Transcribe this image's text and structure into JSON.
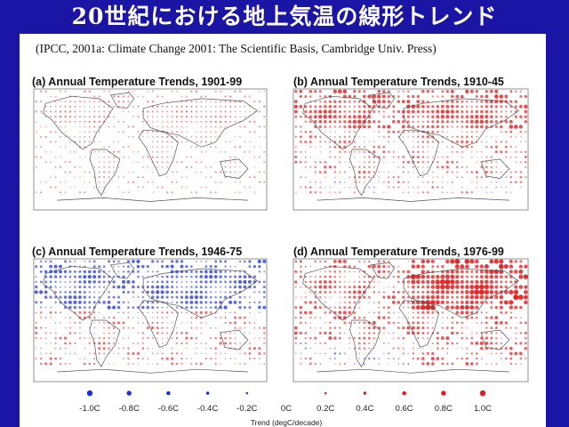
{
  "slide": {
    "title": "20世紀における地上気温の線形トレンド",
    "citation": "(IPCC, 2001a: Climate Change 2001: The Scientific Basis, Cambridge Univ. Press)"
  },
  "maps": [
    {
      "label": "(a) Annual Temperature Trends, 1901-99",
      "pattern": "weak-warming"
    },
    {
      "label": "(b) Annual Temperature Trends, 1910-45",
      "pattern": "moderate-warming-north"
    },
    {
      "label": "(c) Annual Temperature Trends, 1946-75",
      "pattern": "cooling-north-warming-south"
    },
    {
      "label": "(d) Annual Temperature Trends, 1976-99",
      "pattern": "strong-warming"
    }
  ],
  "legend": {
    "title": "Trend (degC/decade)",
    "ticks": [
      "-1.0C",
      "-0.8C",
      "-0.6C",
      "-0.4C",
      "-0.2C",
      "0C",
      "0.2C",
      "0.4C",
      "0.6C",
      "0.8C",
      "1.0C"
    ],
    "values": [
      -1.0,
      -0.8,
      -0.6,
      -0.4,
      -0.2,
      0,
      0.2,
      0.4,
      0.6,
      0.8,
      1.0
    ]
  },
  "colors": {
    "background": "#1b15a6",
    "warming": "#e11b1b",
    "cooling": "#1a2fd6",
    "coastline": "#555555"
  }
}
